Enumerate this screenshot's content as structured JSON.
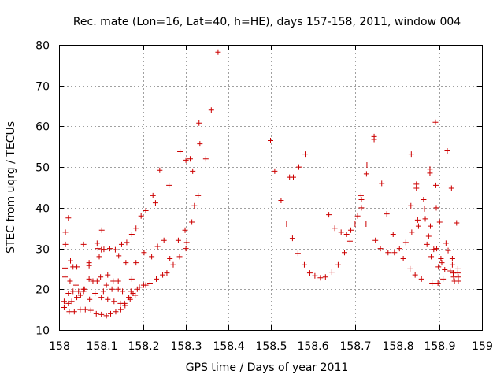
{
  "chart_data": {
    "type": "scatter",
    "title": "Rec. mate (Lon=16, Lat=40, h=HE), days 157-158, 2011, window 004",
    "xlabel": "GPS time / Days of year 2011",
    "ylabel": "STEC from uqrg / TECUs",
    "xlim": [
      158,
      159
    ],
    "ylim": [
      10,
      80
    ],
    "xticks": [
      158,
      158.1,
      158.2,
      158.3,
      158.4,
      158.5,
      158.6,
      158.7,
      158.8,
      158.9,
      159
    ],
    "xtick_labels": [
      "158",
      "158.1",
      "158.2",
      "158.3",
      "158.4",
      "158.5",
      "158.6",
      "158.7",
      "158.8",
      "158.9",
      "159"
    ],
    "yticks": [
      10,
      20,
      30,
      40,
      50,
      60,
      70,
      80
    ],
    "ytick_labels": [
      "10",
      "20",
      "30",
      "40",
      "50",
      "60",
      "70",
      "80"
    ],
    "grid": true,
    "marker": "+",
    "marker_color": "#cc0000",
    "series": [
      {
        "name": "STEC",
        "points": [
          [
            158.015,
            34.0
          ],
          [
            158.022,
            37.5
          ],
          [
            158.033,
            25.5
          ],
          [
            158.058,
            31.0
          ],
          [
            158.071,
            26.5
          ],
          [
            158.09,
            31.3
          ],
          [
            158.092,
            30.0
          ],
          [
            158.1,
            29.7
          ],
          [
            158.106,
            29.8
          ],
          [
            158.12,
            30.0
          ],
          [
            158.133,
            29.7
          ],
          [
            158.148,
            31.0
          ],
          [
            158.16,
            31.5
          ],
          [
            158.172,
            33.5
          ],
          [
            158.182,
            35.0
          ],
          [
            158.194,
            38.0
          ],
          [
            158.205,
            39.3
          ],
          [
            158.222,
            43.0
          ],
          [
            158.228,
            41.2
          ],
          [
            158.238,
            49.2
          ],
          [
            158.26,
            45.5
          ],
          [
            158.286,
            53.8
          ],
          [
            158.3,
            51.7
          ],
          [
            158.31,
            52.0
          ],
          [
            158.316,
            49.0
          ],
          [
            158.331,
            60.8
          ],
          [
            158.333,
            55.7
          ],
          [
            158.347,
            52.0
          ],
          [
            158.36,
            64.0
          ],
          [
            158.376,
            78.2
          ],
          [
            158.015,
            31.0
          ],
          [
            158.014,
            25.2
          ],
          [
            158.027,
            27.0
          ],
          [
            158.042,
            25.5
          ],
          [
            158.071,
            25.8
          ],
          [
            158.095,
            28.0
          ],
          [
            158.101,
            34.5
          ],
          [
            158.115,
            23.5
          ],
          [
            158.128,
            22.0
          ],
          [
            158.141,
            28.2
          ],
          [
            158.158,
            26.5
          ],
          [
            158.182,
            26.5
          ],
          [
            158.201,
            29.0
          ],
          [
            158.219,
            28.0
          ],
          [
            158.233,
            30.5
          ],
          [
            158.248,
            32.0
          ],
          [
            158.262,
            27.5
          ],
          [
            158.282,
            32.0
          ],
          [
            158.298,
            34.5
          ],
          [
            158.302,
            31.5
          ],
          [
            158.314,
            36.5
          ],
          [
            158.329,
            43.0
          ],
          [
            158.32,
            40.5
          ],
          [
            158.014,
            23.0
          ],
          [
            158.026,
            22.0
          ],
          [
            158.04,
            21.0
          ],
          [
            158.058,
            20.0
          ],
          [
            158.071,
            22.5
          ],
          [
            158.09,
            22.0
          ],
          [
            158.105,
            19.5
          ],
          [
            158.125,
            20.0
          ],
          [
            158.14,
            20.0
          ],
          [
            158.15,
            19.5
          ],
          [
            158.17,
            19.5
          ],
          [
            158.185,
            20.0
          ],
          [
            158.2,
            21.0
          ],
          [
            158.215,
            21.5
          ],
          [
            158.23,
            22.5
          ],
          [
            158.245,
            23.5
          ],
          [
            158.255,
            24.0
          ],
          [
            158.27,
            26.0
          ],
          [
            158.285,
            28.0
          ],
          [
            158.3,
            30.0
          ],
          [
            158.012,
            17.0
          ],
          [
            158.022,
            16.5
          ],
          [
            158.03,
            17.0
          ],
          [
            158.042,
            18.0
          ],
          [
            158.051,
            18.5
          ],
          [
            158.058,
            19.5
          ],
          [
            158.072,
            17.5
          ],
          [
            158.085,
            19.0
          ],
          [
            158.1,
            18.0
          ],
          [
            158.115,
            17.5
          ],
          [
            158.13,
            17.0
          ],
          [
            158.145,
            16.5
          ],
          [
            158.155,
            16.5
          ],
          [
            158.165,
            18.0
          ],
          [
            158.175,
            19.0
          ],
          [
            158.19,
            20.5
          ],
          [
            158.205,
            21.0
          ],
          [
            158.012,
            15.5
          ],
          [
            158.024,
            14.5
          ],
          [
            158.036,
            14.5
          ],
          [
            158.05,
            15.0
          ],
          [
            158.062,
            15.0
          ],
          [
            158.075,
            14.8
          ],
          [
            158.088,
            14.0
          ],
          [
            158.1,
            13.8
          ],
          [
            158.112,
            13.5
          ],
          [
            158.122,
            14.0
          ],
          [
            158.134,
            14.5
          ],
          [
            158.146,
            15.0
          ],
          [
            158.156,
            16.0
          ],
          [
            158.168,
            17.5
          ],
          [
            158.18,
            18.5
          ],
          [
            158.022,
            19.0
          ],
          [
            158.033,
            19.5
          ],
          [
            158.046,
            19.5
          ],
          [
            158.06,
            20.0
          ],
          [
            158.08,
            22.0
          ],
          [
            158.098,
            23.0
          ],
          [
            158.112,
            21.0
          ],
          [
            158.14,
            22.0
          ],
          [
            158.172,
            22.5
          ],
          [
            158.5,
            56.5
          ],
          [
            158.51,
            49.0
          ],
          [
            158.525,
            41.8
          ],
          [
            158.538,
            36.0
          ],
          [
            158.545,
            47.5
          ],
          [
            158.554,
            47.5
          ],
          [
            158.552,
            32.5
          ],
          [
            158.565,
            28.8
          ],
          [
            158.567,
            50.0
          ],
          [
            158.58,
            26.0
          ],
          [
            158.582,
            53.2
          ],
          [
            158.593,
            24.0
          ],
          [
            158.605,
            23.3
          ],
          [
            158.618,
            22.8
          ],
          [
            158.63,
            23.0
          ],
          [
            158.638,
            38.3
          ],
          [
            158.645,
            24.2
          ],
          [
            158.652,
            35.0
          ],
          [
            158.66,
            26.0
          ],
          [
            158.667,
            34.0
          ],
          [
            158.675,
            29.0
          ],
          [
            158.68,
            33.5
          ],
          [
            158.688,
            31.8
          ],
          [
            158.69,
            34.5
          ],
          [
            158.7,
            36.0
          ],
          [
            158.706,
            38.0
          ],
          [
            158.715,
            42.0
          ],
          [
            158.714,
            43.0
          ],
          [
            158.715,
            40.0
          ],
          [
            158.726,
            36.0
          ],
          [
            158.727,
            48.3
          ],
          [
            158.728,
            50.5
          ],
          [
            158.745,
            57.5
          ],
          [
            158.745,
            56.8
          ],
          [
            158.748,
            32.0
          ],
          [
            158.76,
            30.0
          ],
          [
            158.763,
            46.0
          ],
          [
            158.775,
            38.5
          ],
          [
            158.778,
            29.0
          ],
          [
            158.79,
            33.5
          ],
          [
            158.793,
            29.0
          ],
          [
            158.805,
            30.0
          ],
          [
            158.814,
            27.5
          ],
          [
            158.82,
            31.5
          ],
          [
            158.83,
            25.0
          ],
          [
            158.833,
            53.2
          ],
          [
            158.832,
            40.5
          ],
          [
            158.834,
            34.0
          ],
          [
            158.842,
            23.5
          ],
          [
            158.845,
            45.8
          ],
          [
            158.845,
            44.8
          ],
          [
            158.848,
            37.0
          ],
          [
            158.85,
            35.5
          ],
          [
            158.857,
            22.5
          ],
          [
            158.862,
            42.0
          ],
          [
            158.864,
            39.7
          ],
          [
            158.866,
            37.3
          ],
          [
            158.87,
            31.0
          ],
          [
            158.877,
            49.5
          ],
          [
            158.877,
            48.5
          ],
          [
            158.878,
            35.5
          ],
          [
            158.874,
            33.0
          ],
          [
            158.88,
            28.0
          ],
          [
            158.882,
            21.5
          ],
          [
            158.886,
            29.8
          ],
          [
            158.89,
            61.0
          ],
          [
            158.891,
            45.5
          ],
          [
            158.892,
            40.0
          ],
          [
            158.893,
            30.0
          ],
          [
            158.896,
            21.5
          ],
          [
            158.897,
            25.5
          ],
          [
            158.9,
            36.5
          ],
          [
            158.903,
            27.5
          ],
          [
            158.905,
            26.5
          ],
          [
            158.908,
            22.5
          ],
          [
            158.912,
            24.8
          ],
          [
            158.915,
            31.3
          ],
          [
            158.918,
            54.0
          ],
          [
            158.92,
            29.5
          ],
          [
            158.925,
            24.5
          ],
          [
            158.928,
            44.8
          ],
          [
            158.93,
            27.5
          ],
          [
            158.93,
            26.0
          ],
          [
            158.932,
            24.0
          ],
          [
            158.933,
            23.0
          ],
          [
            158.935,
            22.0
          ],
          [
            158.94,
            36.3
          ],
          [
            158.943,
            25.0
          ],
          [
            158.943,
            24.0
          ],
          [
            158.944,
            23.0
          ],
          [
            158.944,
            22.0
          ]
        ]
      }
    ]
  }
}
